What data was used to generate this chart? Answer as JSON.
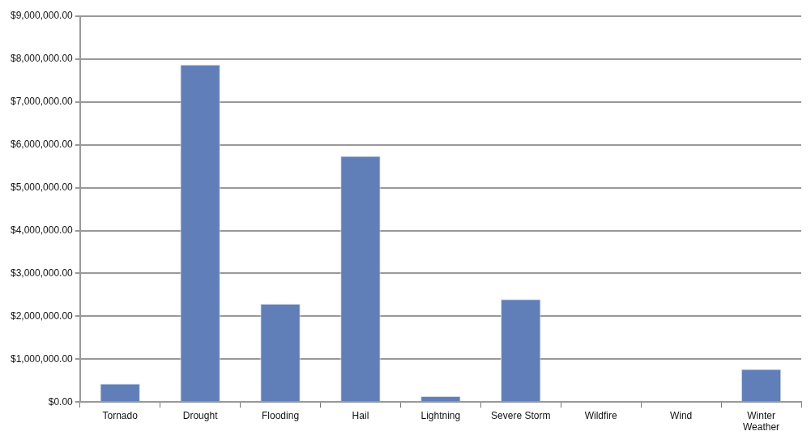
{
  "chart_data": {
    "type": "bar",
    "categories": [
      "Tornado",
      "Drought",
      "Flooding",
      "Hail",
      "Lightning",
      "Severe Storm",
      "Wildfire",
      "Wind",
      "Winter Weather"
    ],
    "values": [
      430000,
      7870000,
      2290000,
      5740000,
      135000,
      2400000,
      0,
      20000,
      770000
    ],
    "color": "#607fb8",
    "ylim": [
      0,
      9000000
    ],
    "yticks": [
      {
        "value": 0,
        "label": "$0.00"
      },
      {
        "value": 1000000,
        "label": "$1,000,000.00"
      },
      {
        "value": 2000000,
        "label": "$2,000,000.00"
      },
      {
        "value": 3000000,
        "label": "$3,000,000.00"
      },
      {
        "value": 4000000,
        "label": "$4,000,000.00"
      },
      {
        "value": 5000000,
        "label": "$5,000,000.00"
      },
      {
        "value": 6000000,
        "label": "$6,000,000.00"
      },
      {
        "value": 7000000,
        "label": "$7,000,000.00"
      },
      {
        "value": 8000000,
        "label": "$8,000,000.00"
      },
      {
        "value": 9000000,
        "label": "$9,000,000.00"
      }
    ],
    "grid": "y",
    "legend": false
  }
}
